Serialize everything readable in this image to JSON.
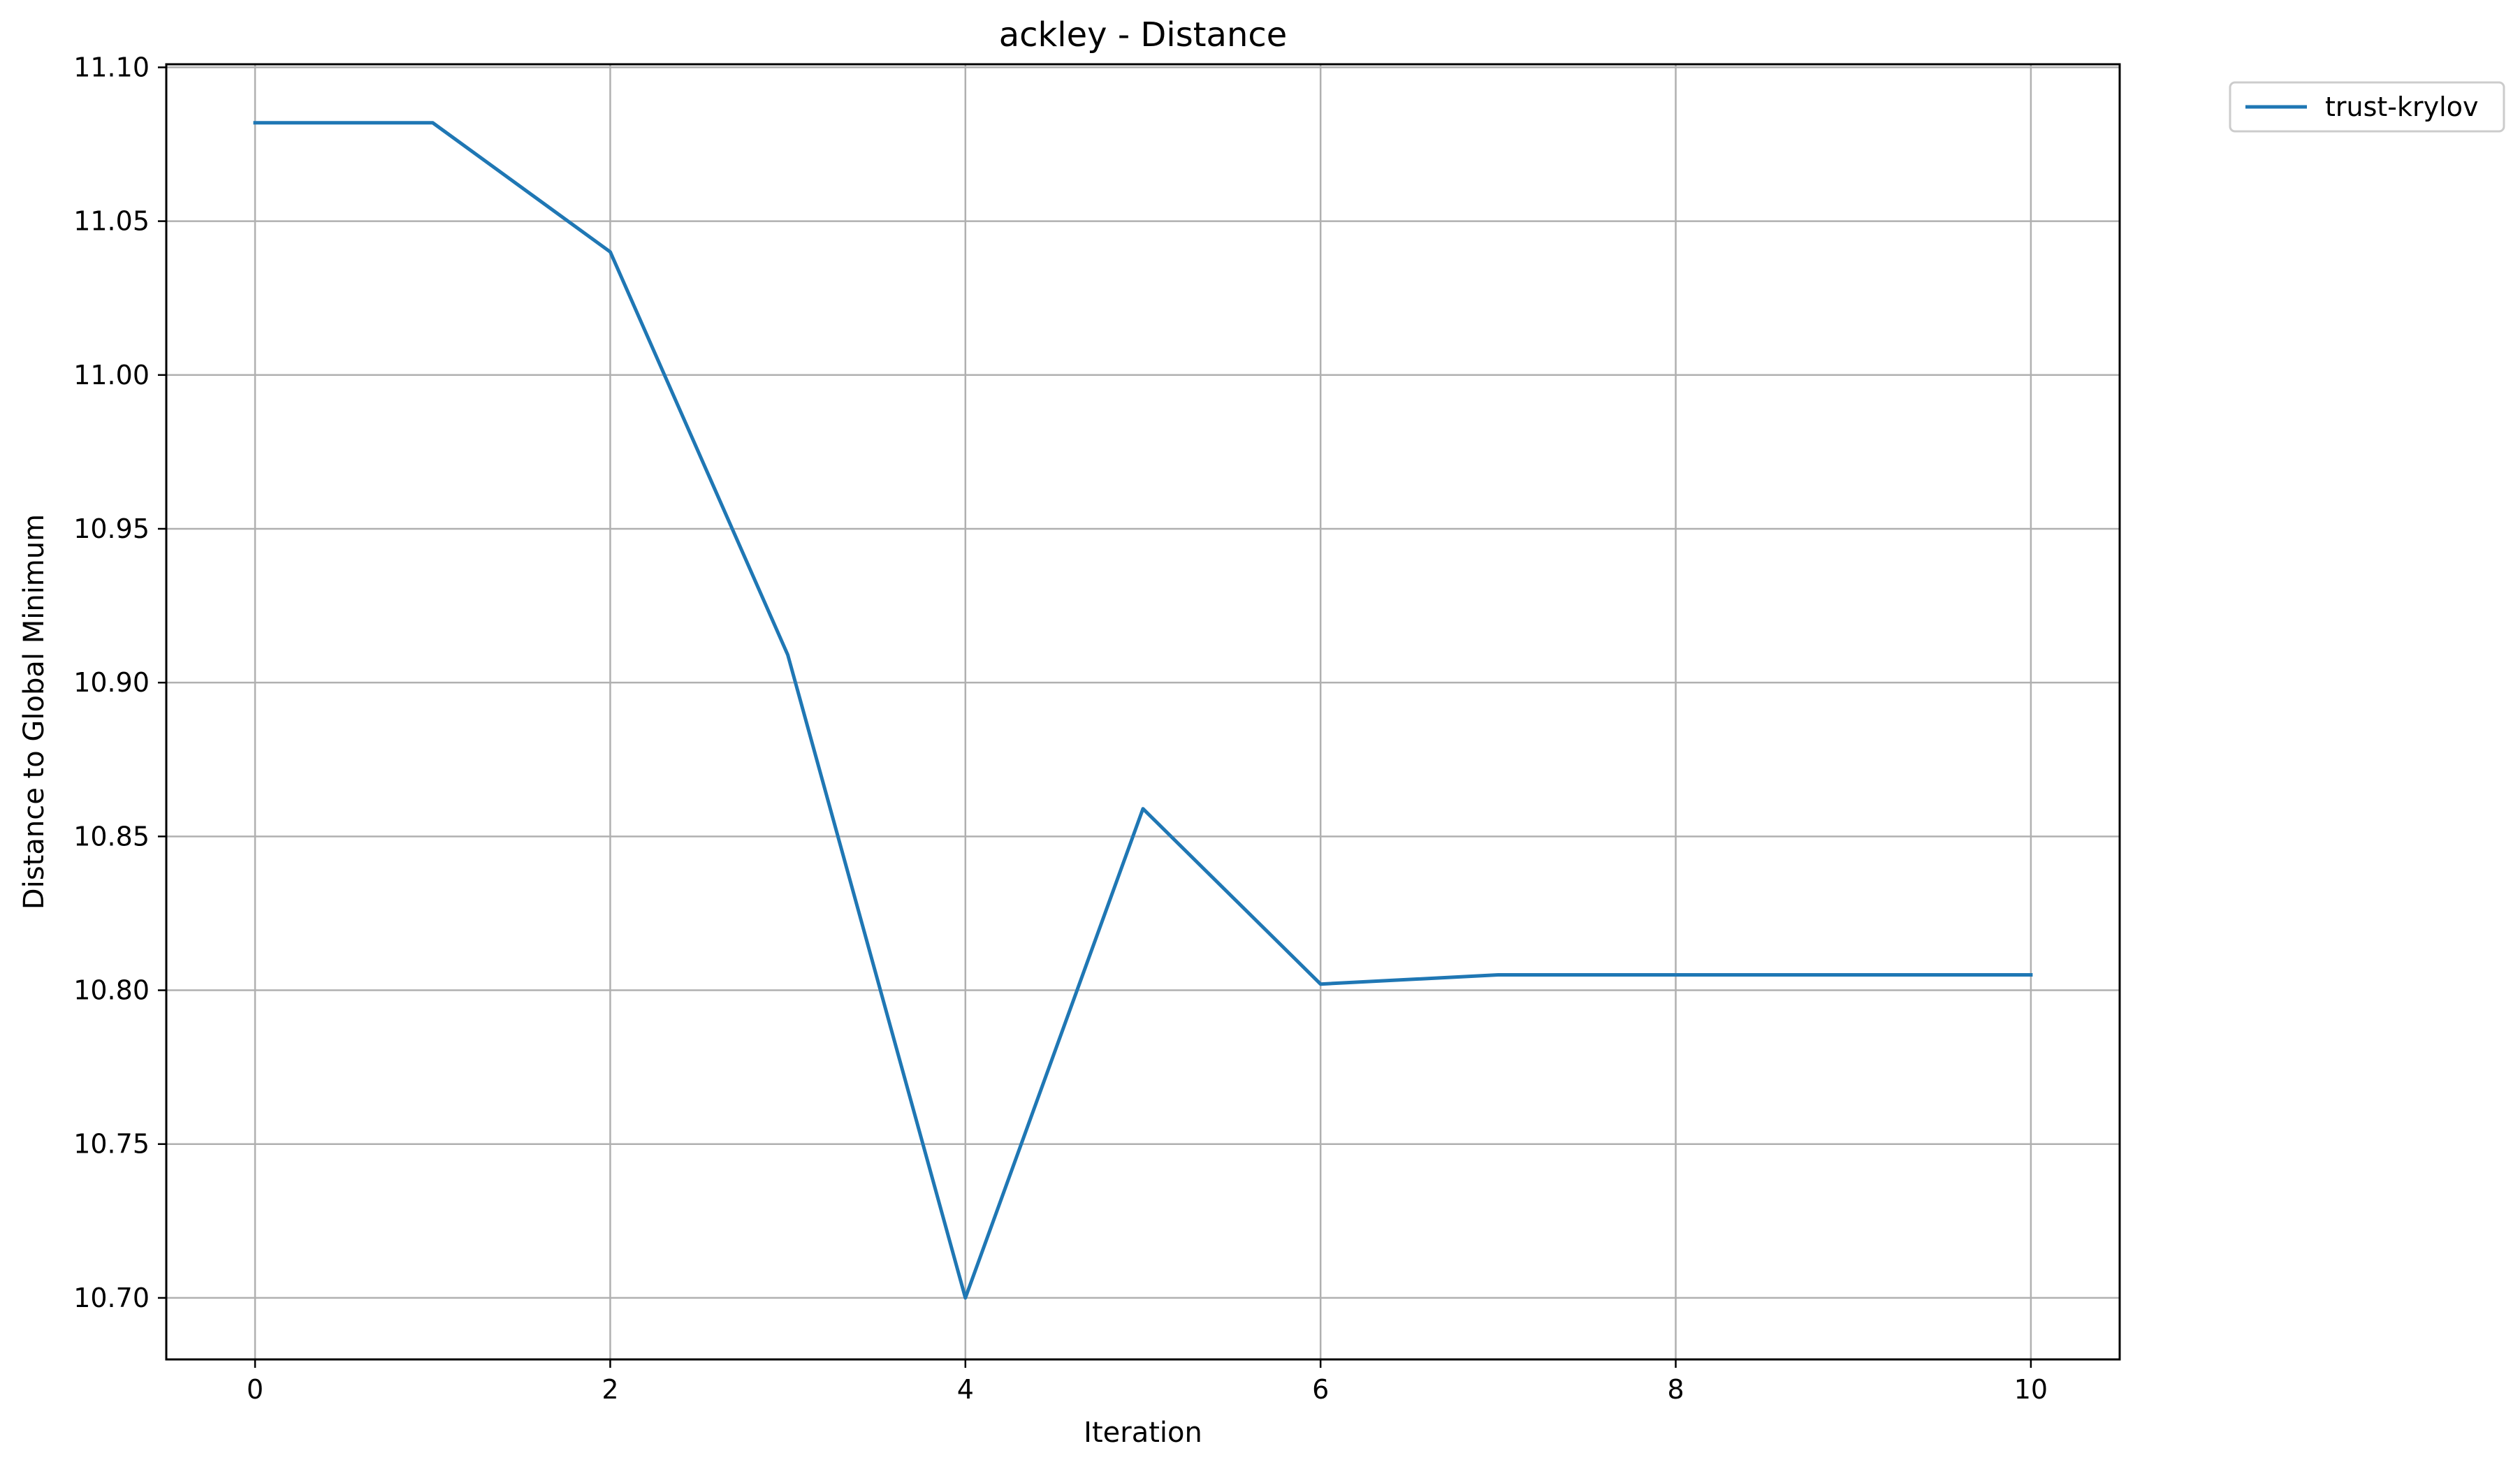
{
  "chart_data": {
    "type": "line",
    "title": "ackley - Distance",
    "xlabel": "Iteration",
    "ylabel": "Distance to Global Minimum",
    "xlim": [
      -0.5,
      10.5
    ],
    "ylim": [
      10.68,
      11.101
    ],
    "x_ticks": [
      0,
      2,
      4,
      6,
      8,
      10
    ],
    "x_tick_labels": [
      "0",
      "2",
      "4",
      "6",
      "8",
      "10"
    ],
    "y_ticks": [
      10.7,
      10.75,
      10.8,
      10.85,
      10.9,
      10.95,
      11.0,
      11.05,
      11.1
    ],
    "y_tick_labels": [
      "10.70",
      "10.75",
      "10.80",
      "10.85",
      "10.90",
      "10.95",
      "11.00",
      "11.05",
      "11.10"
    ],
    "grid": true,
    "legend_position": "outside top-right",
    "series": [
      {
        "name": "trust-krylov",
        "color": "#1f77b4",
        "x": [
          0,
          1,
          2,
          3,
          4,
          5,
          6,
          7,
          8,
          9,
          10
        ],
        "y": [
          11.082,
          11.082,
          11.04,
          10.909,
          10.7,
          10.859,
          10.802,
          10.805,
          10.805,
          10.805,
          10.805
        ]
      }
    ]
  }
}
